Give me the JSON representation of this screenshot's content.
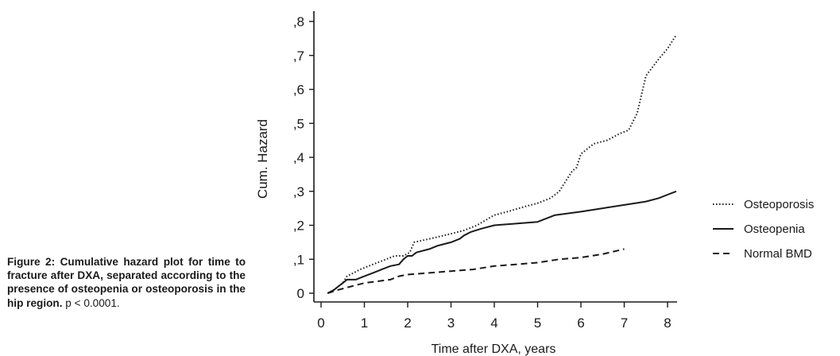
{
  "caption": {
    "bold": "Figure 2: Cumulative hazard plot for time to fracture after DXA, separated according to the presence of osteopenia or osteoporosis in the hip region.",
    "normal": " p < 0.0001."
  },
  "chart_data": {
    "type": "line",
    "title": "",
    "xlabel": "Time after DXA, years",
    "ylabel": "Cum. Hazard",
    "xlim": [
      -0.1,
      8.2
    ],
    "ylim": [
      0,
      0.8
    ],
    "xticks": [
      0,
      1,
      2,
      3,
      4,
      5,
      6,
      7,
      8
    ],
    "yticks": [
      0,
      0.1,
      0.2,
      0.3,
      0.4,
      0.5,
      0.6,
      0.7,
      0.8
    ],
    "ytick_labels": [
      "0",
      ",1",
      ",2",
      ",3",
      ",4",
      ",5",
      ",6",
      ",7",
      ",8"
    ],
    "legend_position": "right",
    "grid": false,
    "series": [
      {
        "name": "Osteoporosis",
        "style": "dotted",
        "x": [
          0.15,
          0.3,
          0.4,
          0.5,
          0.6,
          0.75,
          0.9,
          1.1,
          1.3,
          1.5,
          1.7,
          1.9,
          2.05,
          2.08,
          2.15,
          2.5,
          3.0,
          3.3,
          3.6,
          4.0,
          4.3,
          4.7,
          5.0,
          5.3,
          5.5,
          5.65,
          5.8,
          5.9,
          6.0,
          6.3,
          6.6,
          6.9,
          7.1,
          7.3,
          7.5,
          7.8,
          8.0,
          8.2
        ],
        "y": [
          0.0,
          0.01,
          0.02,
          0.03,
          0.05,
          0.06,
          0.07,
          0.08,
          0.09,
          0.1,
          0.11,
          0.11,
          0.12,
          0.13,
          0.15,
          0.16,
          0.175,
          0.185,
          0.2,
          0.23,
          0.24,
          0.255,
          0.265,
          0.28,
          0.3,
          0.33,
          0.36,
          0.37,
          0.41,
          0.44,
          0.45,
          0.47,
          0.48,
          0.53,
          0.64,
          0.69,
          0.72,
          0.76
        ]
      },
      {
        "name": "Osteopenia",
        "style": "solid",
        "x": [
          0.15,
          0.3,
          0.4,
          0.5,
          0.6,
          0.8,
          1.0,
          1.2,
          1.4,
          1.6,
          1.8,
          1.9,
          2.0,
          2.1,
          2.2,
          2.5,
          2.7,
          3.0,
          3.2,
          3.3,
          3.45,
          3.7,
          4.0,
          4.5,
          5.0,
          5.4,
          6.0,
          6.5,
          7.0,
          7.5,
          7.8,
          8.0,
          8.2
        ],
        "y": [
          0.0,
          0.01,
          0.02,
          0.03,
          0.04,
          0.04,
          0.05,
          0.06,
          0.07,
          0.08,
          0.085,
          0.1,
          0.11,
          0.11,
          0.12,
          0.13,
          0.14,
          0.15,
          0.16,
          0.17,
          0.18,
          0.19,
          0.2,
          0.205,
          0.21,
          0.23,
          0.24,
          0.25,
          0.26,
          0.27,
          0.28,
          0.29,
          0.3
        ]
      },
      {
        "name": "Normal BMD",
        "style": "dashed",
        "x": [
          0.15,
          0.4,
          0.7,
          1.0,
          1.3,
          1.6,
          1.8,
          2.0,
          2.5,
          3.0,
          3.5,
          4.0,
          4.5,
          5.0,
          5.5,
          6.0,
          6.5,
          7.0
        ],
        "y": [
          0.0,
          0.01,
          0.02,
          0.03,
          0.035,
          0.04,
          0.05,
          0.055,
          0.06,
          0.065,
          0.07,
          0.08,
          0.085,
          0.09,
          0.1,
          0.105,
          0.115,
          0.13
        ]
      }
    ]
  }
}
